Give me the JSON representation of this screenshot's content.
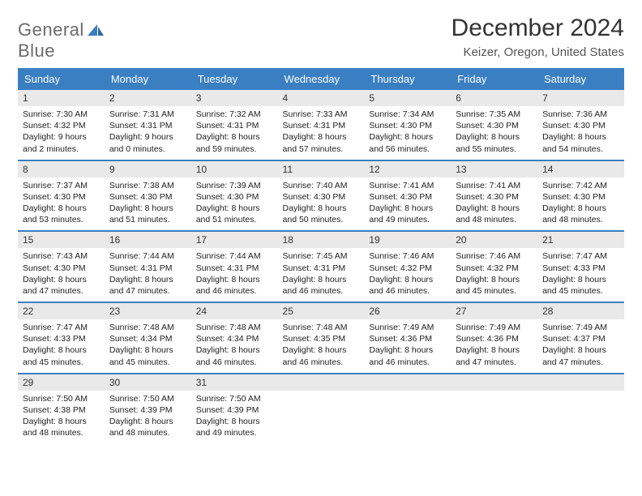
{
  "logo": {
    "line1": "General",
    "line2": "Blue"
  },
  "colors": {
    "accent": "#3a7fc2",
    "header_text": "#ffffff",
    "daynum_bg": "#e9e9e9"
  },
  "title": "December 2024",
  "subtitle": "Keizer, Oregon, United States",
  "weekdays": [
    "Sunday",
    "Monday",
    "Tuesday",
    "Wednesday",
    "Thursday",
    "Friday",
    "Saturday"
  ],
  "days": {
    "1": {
      "sunrise": "7:30 AM",
      "sunset": "4:32 PM",
      "daylight": "9 hours and 2 minutes."
    },
    "2": {
      "sunrise": "7:31 AM",
      "sunset": "4:31 PM",
      "daylight": "9 hours and 0 minutes."
    },
    "3": {
      "sunrise": "7:32 AM",
      "sunset": "4:31 PM",
      "daylight": "8 hours and 59 minutes."
    },
    "4": {
      "sunrise": "7:33 AM",
      "sunset": "4:31 PM",
      "daylight": "8 hours and 57 minutes."
    },
    "5": {
      "sunrise": "7:34 AM",
      "sunset": "4:30 PM",
      "daylight": "8 hours and 56 minutes."
    },
    "6": {
      "sunrise": "7:35 AM",
      "sunset": "4:30 PM",
      "daylight": "8 hours and 55 minutes."
    },
    "7": {
      "sunrise": "7:36 AM",
      "sunset": "4:30 PM",
      "daylight": "8 hours and 54 minutes."
    },
    "8": {
      "sunrise": "7:37 AM",
      "sunset": "4:30 PM",
      "daylight": "8 hours and 53 minutes."
    },
    "9": {
      "sunrise": "7:38 AM",
      "sunset": "4:30 PM",
      "daylight": "8 hours and 51 minutes."
    },
    "10": {
      "sunrise": "7:39 AM",
      "sunset": "4:30 PM",
      "daylight": "8 hours and 51 minutes."
    },
    "11": {
      "sunrise": "7:40 AM",
      "sunset": "4:30 PM",
      "daylight": "8 hours and 50 minutes."
    },
    "12": {
      "sunrise": "7:41 AM",
      "sunset": "4:30 PM",
      "daylight": "8 hours and 49 minutes."
    },
    "13": {
      "sunrise": "7:41 AM",
      "sunset": "4:30 PM",
      "daylight": "8 hours and 48 minutes."
    },
    "14": {
      "sunrise": "7:42 AM",
      "sunset": "4:30 PM",
      "daylight": "8 hours and 48 minutes."
    },
    "15": {
      "sunrise": "7:43 AM",
      "sunset": "4:30 PM",
      "daylight": "8 hours and 47 minutes."
    },
    "16": {
      "sunrise": "7:44 AM",
      "sunset": "4:31 PM",
      "daylight": "8 hours and 47 minutes."
    },
    "17": {
      "sunrise": "7:44 AM",
      "sunset": "4:31 PM",
      "daylight": "8 hours and 46 minutes."
    },
    "18": {
      "sunrise": "7:45 AM",
      "sunset": "4:31 PM",
      "daylight": "8 hours and 46 minutes."
    },
    "19": {
      "sunrise": "7:46 AM",
      "sunset": "4:32 PM",
      "daylight": "8 hours and 46 minutes."
    },
    "20": {
      "sunrise": "7:46 AM",
      "sunset": "4:32 PM",
      "daylight": "8 hours and 45 minutes."
    },
    "21": {
      "sunrise": "7:47 AM",
      "sunset": "4:33 PM",
      "daylight": "8 hours and 45 minutes."
    },
    "22": {
      "sunrise": "7:47 AM",
      "sunset": "4:33 PM",
      "daylight": "8 hours and 45 minutes."
    },
    "23": {
      "sunrise": "7:48 AM",
      "sunset": "4:34 PM",
      "daylight": "8 hours and 45 minutes."
    },
    "24": {
      "sunrise": "7:48 AM",
      "sunset": "4:34 PM",
      "daylight": "8 hours and 46 minutes."
    },
    "25": {
      "sunrise": "7:48 AM",
      "sunset": "4:35 PM",
      "daylight": "8 hours and 46 minutes."
    },
    "26": {
      "sunrise": "7:49 AM",
      "sunset": "4:36 PM",
      "daylight": "8 hours and 46 minutes."
    },
    "27": {
      "sunrise": "7:49 AM",
      "sunset": "4:36 PM",
      "daylight": "8 hours and 47 minutes."
    },
    "28": {
      "sunrise": "7:49 AM",
      "sunset": "4:37 PM",
      "daylight": "8 hours and 47 minutes."
    },
    "29": {
      "sunrise": "7:50 AM",
      "sunset": "4:38 PM",
      "daylight": "8 hours and 48 minutes."
    },
    "30": {
      "sunrise": "7:50 AM",
      "sunset": "4:39 PM",
      "daylight": "8 hours and 48 minutes."
    },
    "31": {
      "sunrise": "7:50 AM",
      "sunset": "4:39 PM",
      "daylight": "8 hours and 49 minutes."
    }
  },
  "labels": {
    "sunrise": "Sunrise: ",
    "sunset": "Sunset: ",
    "daylight": "Daylight: "
  },
  "layout": {
    "weeks": [
      [
        1,
        2,
        3,
        4,
        5,
        6,
        7
      ],
      [
        8,
        9,
        10,
        11,
        12,
        13,
        14
      ],
      [
        15,
        16,
        17,
        18,
        19,
        20,
        21
      ],
      [
        22,
        23,
        24,
        25,
        26,
        27,
        28
      ],
      [
        29,
        30,
        31,
        null,
        null,
        null,
        null
      ]
    ]
  }
}
